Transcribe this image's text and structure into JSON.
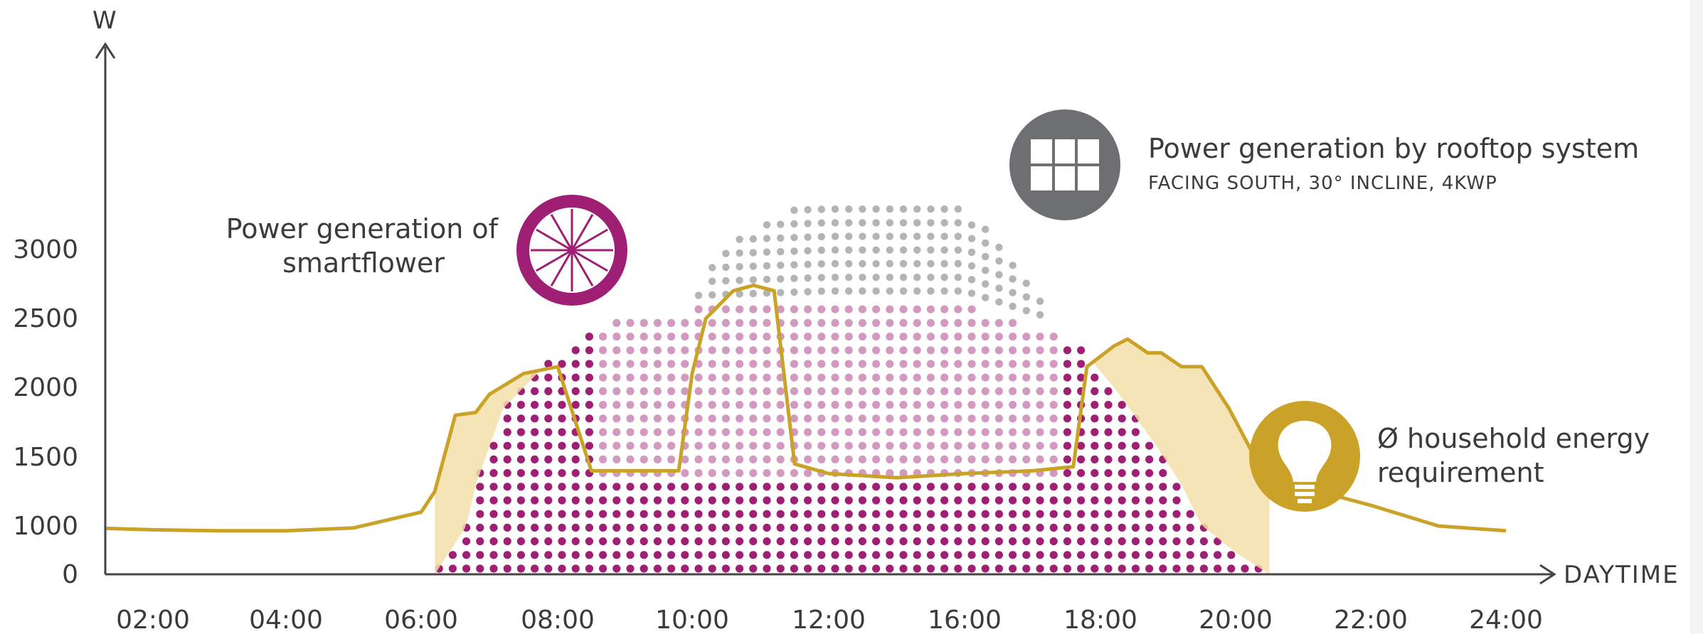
{
  "chart_data": {
    "type": "area",
    "ylabel": "W",
    "xlabel": "DAYTIME",
    "yticks": [
      0,
      1000,
      1500,
      2000,
      2500,
      3000
    ],
    "xticks": [
      "02:00",
      "04:00",
      "06:00",
      "08:00",
      "10:00",
      "12:00",
      "16:00",
      "18:00",
      "20:00",
      "22:00",
      "24:00"
    ],
    "ylim": [
      0,
      3600
    ],
    "annotations": {
      "smartflower": [
        "Power generation of",
        "smartflower"
      ],
      "rooftop_title": "Power generation by rooftop system",
      "rooftop_sub": "FACING SOUTH, 30° INCLINE, 4KWP",
      "household": [
        "Ø household energy",
        "requirement"
      ]
    },
    "colors": {
      "smartflower": "#9e1f73",
      "rooftop": "#b4b4b4",
      "household": "#c9a227",
      "surplus": "#f3dfa8",
      "rooftop_icon": "#6d6f71"
    },
    "series": [
      {
        "name": "Power generation of smartflower",
        "x": [
          6.2,
          6.8,
          7.2,
          8.0,
          9.0,
          12.0,
          16.0,
          17.6,
          18.2,
          18.8,
          19.2,
          19.6,
          20.0,
          20.5
        ],
        "y": [
          0,
          1300,
          1850,
          2250,
          2550,
          2600,
          2600,
          2350,
          2000,
          1600,
          1300,
          900,
          450,
          0
        ]
      },
      {
        "name": "Power generation by rooftop system",
        "x": [
          8.8,
          9.4,
          10.0,
          10.6,
          11.4,
          12.0,
          16.0,
          16.6,
          17.2
        ],
        "y": [
          2000,
          2350,
          2700,
          3050,
          3300,
          3350,
          3300,
          3000,
          2600
        ]
      },
      {
        "name": "Ø household energy requirement",
        "x": [
          1.0,
          2.0,
          3.0,
          4.0,
          5.0,
          6.0,
          6.2,
          6.5,
          6.8,
          7.0,
          7.5,
          8.0,
          8.5,
          9.0,
          9.8,
          10.0,
          10.2,
          10.6,
          10.9,
          11.2,
          11.5,
          12.0,
          14.0,
          16.0,
          17.0,
          17.6,
          17.8,
          18.2,
          18.4,
          18.7,
          18.9,
          19.2,
          19.5,
          19.9,
          20.5,
          21.0,
          22.0,
          23.0,
          24.0
        ],
        "y": [
          950,
          920,
          900,
          900,
          960,
          1100,
          1250,
          1800,
          1820,
          1950,
          2100,
          2150,
          1400,
          1400,
          1400,
          2100,
          2500,
          2700,
          2740,
          2700,
          1450,
          1380,
          1350,
          1380,
          1400,
          1430,
          2150,
          2300,
          2350,
          2250,
          2250,
          2150,
          2150,
          1850,
          1300,
          1280,
          1150,
          1000,
          900
        ]
      }
    ]
  }
}
